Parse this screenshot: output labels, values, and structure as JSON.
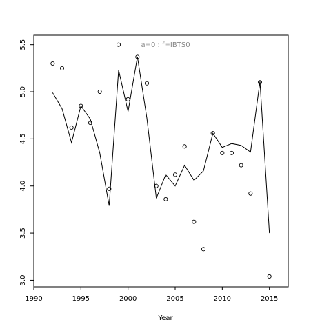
{
  "chart_data": {
    "type": "scatter",
    "title": "",
    "annotation": "a=0  :  f=IBTS0",
    "xlabel": "Year",
    "ylabel": "",
    "xlim": [
      1990,
      2017
    ],
    "ylim": [
      2.93,
      5.6
    ],
    "xticks": [
      1990,
      1995,
      2000,
      2005,
      2010,
      2015
    ],
    "yticks": [
      3.0,
      3.5,
      4.0,
      4.5,
      5.0,
      5.5
    ],
    "grid": false,
    "legend": "none",
    "colors": {
      "points": "#000000",
      "line": "#000000",
      "annotation": "#888888"
    },
    "series": [
      {
        "type": "scatter",
        "x": [
          1992,
          1993,
          1994,
          1995,
          1996,
          1997,
          1998,
          1999,
          2000,
          2001,
          2002,
          2003,
          2004,
          2005,
          2006,
          2007,
          2008,
          2009,
          2010,
          2011,
          2012,
          2013,
          2014,
          2015
        ],
        "y": [
          5.3,
          5.25,
          4.62,
          4.85,
          4.67,
          5.0,
          3.97,
          5.5,
          4.92,
          5.37,
          5.09,
          4.0,
          3.86,
          4.12,
          4.42,
          3.62,
          3.33,
          4.56,
          4.35,
          4.35,
          4.22,
          3.92,
          5.1,
          3.04
        ]
      },
      {
        "type": "line",
        "x": [
          1992,
          1993,
          1994,
          1995,
          1996,
          1997,
          1998,
          1999,
          2000,
          2001,
          2002,
          2003,
          2004,
          2005,
          2006,
          2007,
          2008,
          2009,
          2010,
          2011,
          2012,
          2013,
          2014,
          2015
        ],
        "y": [
          4.99,
          4.82,
          4.46,
          4.85,
          4.71,
          4.35,
          3.79,
          5.23,
          4.79,
          5.37,
          4.72,
          3.87,
          4.12,
          4.0,
          4.22,
          4.06,
          4.16,
          4.56,
          4.41,
          4.45,
          4.43,
          4.36,
          5.11,
          3.5
        ]
      }
    ]
  }
}
